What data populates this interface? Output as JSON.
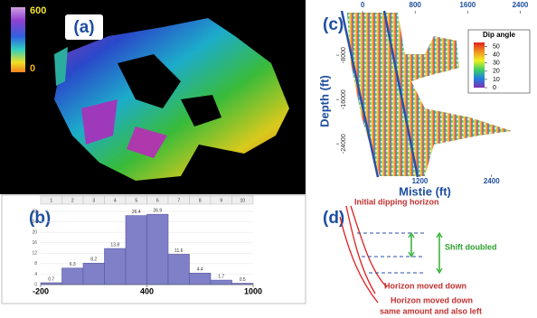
{
  "panel_a": {
    "label": "(a)",
    "colorbar_labels": [
      "600",
      "0"
    ]
  },
  "chart_data": [
    {
      "type": "histogram",
      "label": "(b)",
      "column_headers": [
        "1",
        "2",
        "3",
        "4",
        "5",
        "6",
        "7",
        "8",
        "9",
        "10"
      ],
      "bins": [
        -200,
        -80,
        40,
        160,
        280,
        400,
        520,
        640,
        760,
        880,
        1000
      ],
      "values": [
        0.7,
        6.3,
        8.2,
        13.8,
        26.4,
        26.9,
        11.6,
        4.4,
        1.7,
        0.5
      ],
      "color": "#7f80c8",
      "xlim": [
        -200,
        1000
      ],
      "xticks": [
        -200,
        400,
        1000
      ],
      "ylim": [
        0,
        28
      ],
      "yticks": [
        0,
        4,
        8,
        12,
        16,
        20,
        24,
        28
      ],
      "grid": true
    },
    {
      "type": "scatter",
      "label": "(c)",
      "xlabel": "Mistie (ft)",
      "ylabel": "Depth (ft)",
      "xlim": [
        -400,
        2600
      ],
      "xticks": [
        0,
        800,
        1600,
        2400
      ],
      "x2lim": [
        -200,
        3100
      ],
      "x2ticks": [
        1200,
        2400
      ],
      "ylim": [
        -30000,
        0
      ],
      "yticks": [
        -24000,
        -16000,
        -8000
      ],
      "colorbar": {
        "title": "Dip angle",
        "lim": [
          0,
          55
        ],
        "ticks": [
          0,
          10,
          20,
          30,
          40,
          50
        ]
      }
    }
  ],
  "panel_d": {
    "label": "(d)",
    "texts": [
      "Initial dipping horizon",
      "Shift doubled",
      "Horizon moved down",
      "Horizon moved down",
      "same amount and also left"
    ]
  }
}
